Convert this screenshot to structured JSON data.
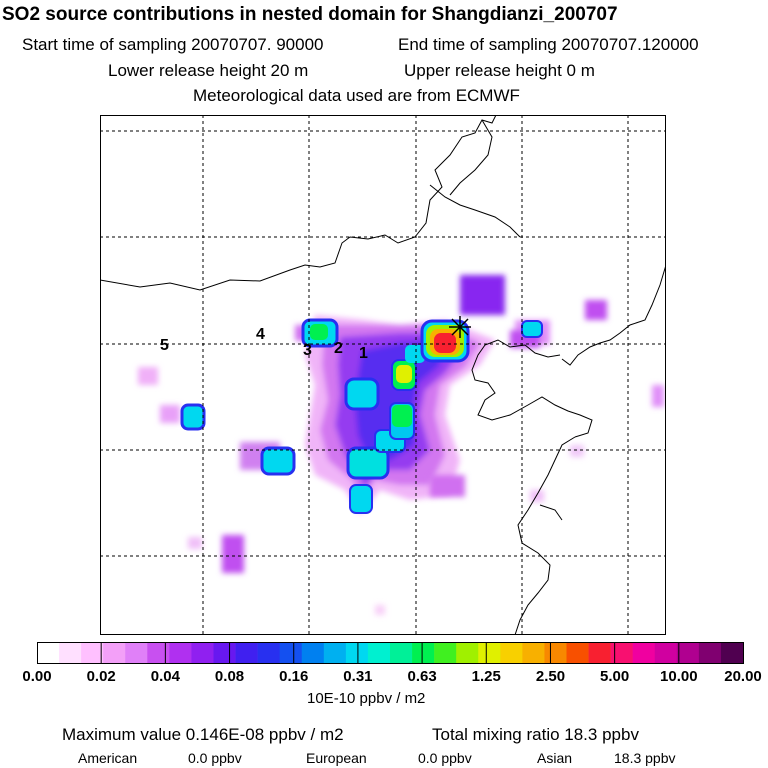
{
  "header": {
    "title": "SO2 source contributions in nested domain for Shangdianzi_200707",
    "start": "Start time of sampling 20070707. 90000",
    "end": "End time of sampling 20070707.120000",
    "lower": "Lower release height   20 m",
    "upper": "Upper release height    0 m",
    "met": "Meteorological data used are from ECMWF"
  },
  "map": {
    "markers": [
      "1",
      "2",
      "3",
      "4",
      "5"
    ],
    "receptor_symbol": "star-marker-icon"
  },
  "colorbar": {
    "colors": [
      "#ffffff",
      "#ffe0ff",
      "#ffc0ff",
      "#f3a0f8",
      "#e080f8",
      "#c850f0",
      "#b030f0",
      "#9020f0",
      "#6818f0",
      "#4020f0",
      "#2830f0",
      "#1450f0",
      "#0080f0",
      "#00b0f0",
      "#00d8f0",
      "#00f0d0",
      "#00f098",
      "#00f050",
      "#40f020",
      "#a0f000",
      "#e0f000",
      "#f8d000",
      "#f8b000",
      "#f88800",
      "#f85000",
      "#f82030",
      "#f81070",
      "#f000a0",
      "#d000a0",
      "#b00090",
      "#800070",
      "#500050"
    ],
    "ticks": [
      "0.00",
      "0.02",
      "0.04",
      "0.08",
      "0.16",
      "0.31",
      "0.63",
      "1.25",
      "2.50",
      "5.00",
      "10.00",
      "20.00"
    ],
    "units": "10E-10 ppbv / m2"
  },
  "summary": {
    "max": "Maximum value  0.146E-08 ppbv / m2",
    "total": "Total mixing ratio      18.3 ppbv",
    "regions": [
      {
        "name": "American",
        "value": "0.0 ppbv"
      },
      {
        "name": "European",
        "value": "0.0 ppbv"
      },
      {
        "name": "Asian",
        "value": "18.3 ppbv"
      }
    ]
  }
}
